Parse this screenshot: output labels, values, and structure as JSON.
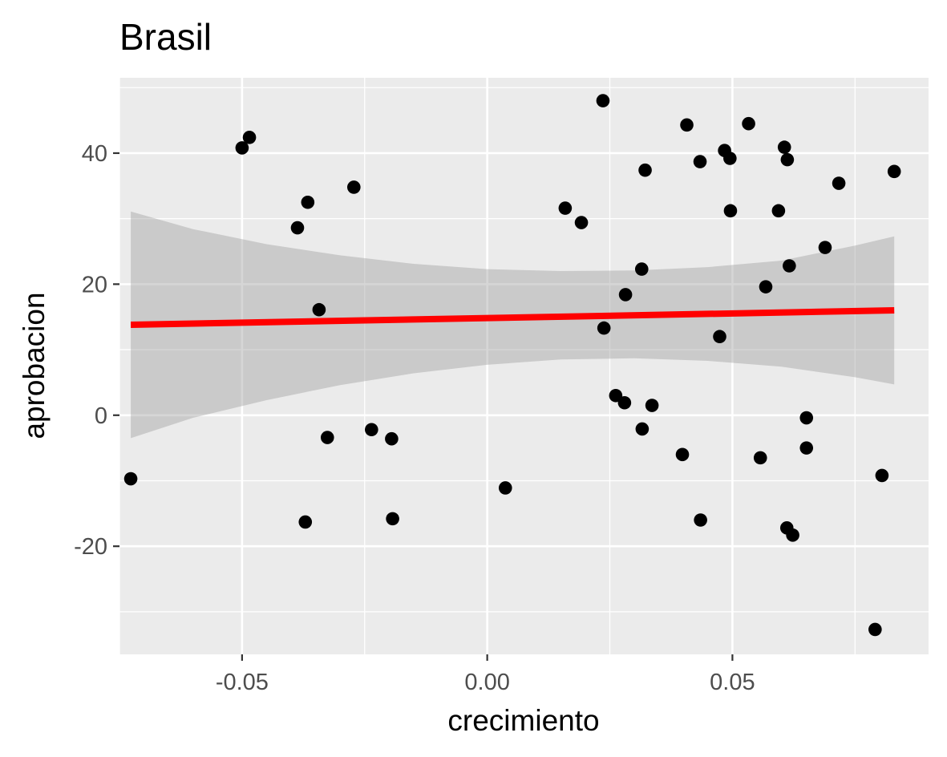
{
  "chart_data": {
    "type": "scatter",
    "title": "Brasil",
    "xlabel": "crecimiento",
    "ylabel": "aprobacion",
    "xlim": [
      -0.075,
      0.09
    ],
    "ylim": [
      -36.5,
      51.5
    ],
    "x_ticks": [
      -0.05,
      0.0,
      0.05
    ],
    "x_tick_labels": [
      "-0.05",
      "0.00",
      "0.05"
    ],
    "x_minor_ticks": [
      -0.075,
      -0.025,
      0.025,
      0.075
    ],
    "y_ticks": [
      -20,
      0,
      20,
      40
    ],
    "y_tick_labels": [
      "-20",
      "0",
      "20",
      "40"
    ],
    "y_minor_ticks": [
      -30,
      -10,
      10,
      30,
      50
    ],
    "grid": true,
    "colors": {
      "panel": "#ebebeb",
      "grid": "#ffffff",
      "points": "#000000",
      "fit_line": "#ff0000",
      "confidence_band": "#999999"
    },
    "series": [
      {
        "type": "scatter",
        "points": [
          {
            "x": -0.0727,
            "y": -9.7
          },
          {
            "x": -0.05,
            "y": 40.8
          },
          {
            "x": -0.0485,
            "y": 42.4
          },
          {
            "x": -0.0387,
            "y": 28.6
          },
          {
            "x": -0.0366,
            "y": 32.5
          },
          {
            "x": -0.0371,
            "y": -16.3
          },
          {
            "x": -0.0343,
            "y": 16.1
          },
          {
            "x": -0.0326,
            "y": -3.4
          },
          {
            "x": -0.0272,
            "y": 34.8
          },
          {
            "x": -0.0236,
            "y": -2.2
          },
          {
            "x": -0.0195,
            "y": -3.6
          },
          {
            "x": -0.0193,
            "y": -15.8
          },
          {
            "x": 0.0037,
            "y": -11.1
          },
          {
            "x": 0.0159,
            "y": 31.6
          },
          {
            "x": 0.0192,
            "y": 29.4
          },
          {
            "x": 0.0236,
            "y": 48.0
          },
          {
            "x": 0.0238,
            "y": 13.3
          },
          {
            "x": 0.0262,
            "y": 3.0
          },
          {
            "x": 0.028,
            "y": 1.9
          },
          {
            "x": 0.0282,
            "y": 18.4
          },
          {
            "x": 0.0315,
            "y": 22.3
          },
          {
            "x": 0.0316,
            "y": -2.1
          },
          {
            "x": 0.0322,
            "y": 37.4
          },
          {
            "x": 0.0336,
            "y": 1.5
          },
          {
            "x": 0.0398,
            "y": -6.0
          },
          {
            "x": 0.0407,
            "y": 44.3
          },
          {
            "x": 0.0434,
            "y": 38.7
          },
          {
            "x": 0.0435,
            "y": -16.0
          },
          {
            "x": 0.0474,
            "y": 12.0
          },
          {
            "x": 0.0484,
            "y": 40.4
          },
          {
            "x": 0.0495,
            "y": 39.2
          },
          {
            "x": 0.0496,
            "y": 31.2
          },
          {
            "x": 0.0533,
            "y": 44.5
          },
          {
            "x": 0.0557,
            "y": -6.5
          },
          {
            "x": 0.0568,
            "y": 19.6
          },
          {
            "x": 0.0594,
            "y": 31.2
          },
          {
            "x": 0.0606,
            "y": 40.9
          },
          {
            "x": 0.0611,
            "y": -17.2
          },
          {
            "x": 0.0612,
            "y": 39.0
          },
          {
            "x": 0.0616,
            "y": 22.8
          },
          {
            "x": 0.0623,
            "y": -18.3
          },
          {
            "x": 0.0651,
            "y": -0.4
          },
          {
            "x": 0.0651,
            "y": -5.0
          },
          {
            "x": 0.0689,
            "y": 25.6
          },
          {
            "x": 0.0717,
            "y": 35.4
          },
          {
            "x": 0.0791,
            "y": -32.7
          },
          {
            "x": 0.0805,
            "y": -9.2
          },
          {
            "x": 0.083,
            "y": 37.2
          }
        ]
      },
      {
        "type": "line",
        "method": "linear fit",
        "x": [
          -0.0727,
          0.083
        ],
        "y": [
          13.8,
          16.0
        ]
      },
      {
        "type": "area",
        "method": "confidence band",
        "x": [
          -0.0727,
          -0.06,
          -0.045,
          -0.03,
          -0.015,
          0.0,
          0.015,
          0.03,
          0.045,
          0.06,
          0.075,
          0.083
        ],
        "y_lower": [
          -3.5,
          -0.4,
          2.3,
          4.6,
          6.4,
          7.7,
          8.5,
          8.7,
          8.3,
          7.4,
          5.8,
          4.7
        ],
        "y_upper": [
          31.1,
          28.4,
          26.1,
          24.4,
          23.1,
          22.3,
          22.0,
          22.1,
          22.6,
          23.6,
          25.9,
          27.3
        ]
      }
    ]
  }
}
